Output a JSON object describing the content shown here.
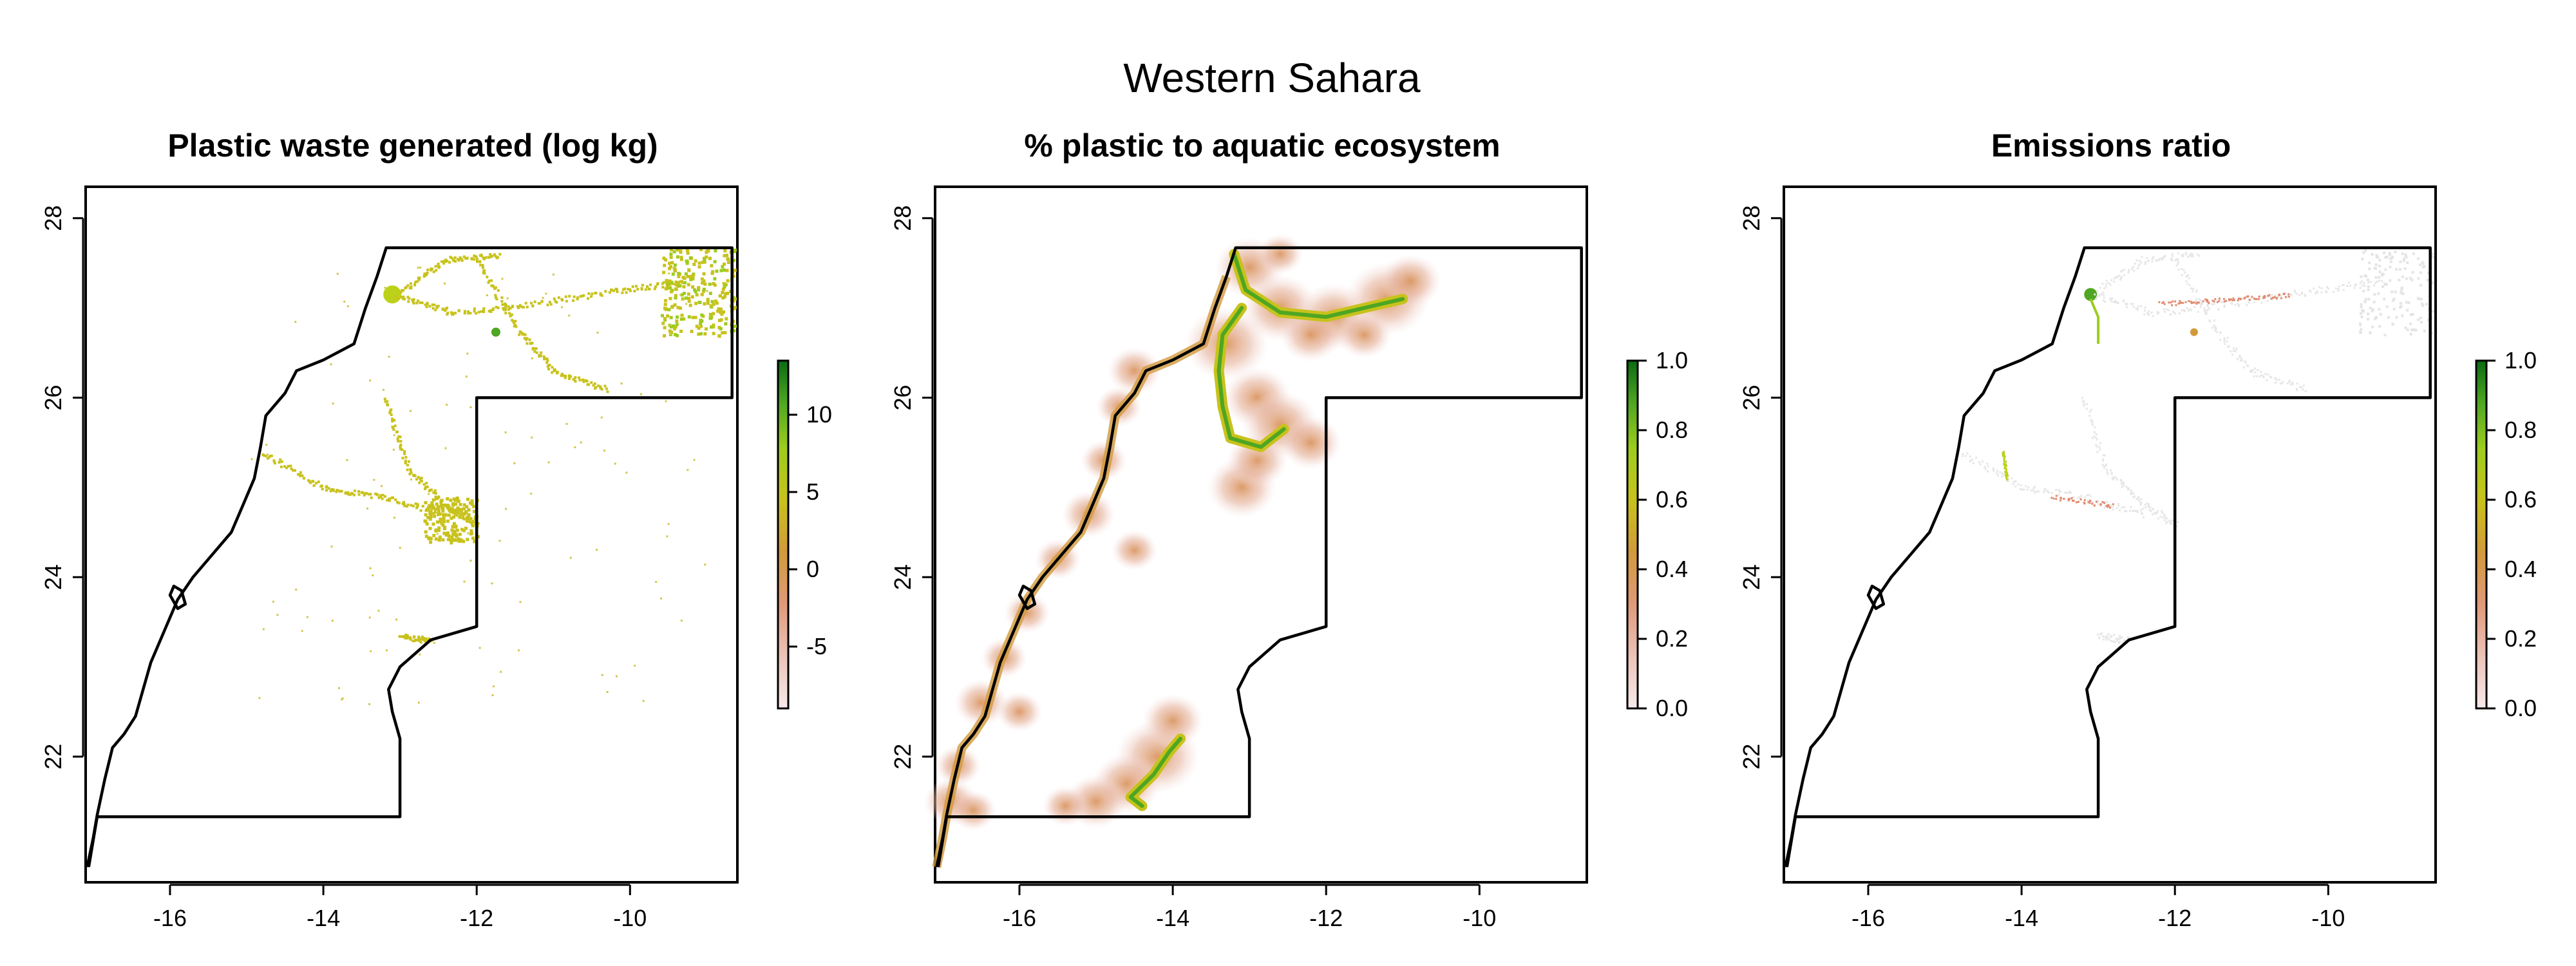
{
  "figure": {
    "title": "Western Sahara"
  },
  "panels": [
    {
      "title": "Plastic waste generated (log kg)",
      "x_ticks": [
        "-16",
        "-14",
        "-12",
        "-10"
      ],
      "y_ticks": [
        "22",
        "24",
        "26",
        "28"
      ],
      "legend": {
        "ticks": [
          "-5",
          "0",
          "5",
          "10"
        ],
        "range": [
          -9,
          13.5
        ]
      }
    },
    {
      "title": "% plastic to aquatic ecosystem",
      "x_ticks": [
        "-16",
        "-14",
        "-12",
        "-10"
      ],
      "y_ticks": [
        "22",
        "24",
        "26",
        "28"
      ],
      "legend": {
        "ticks": [
          "0.0",
          "0.2",
          "0.4",
          "0.6",
          "0.8",
          "1.0"
        ],
        "range": [
          0,
          1
        ]
      }
    },
    {
      "title": "Emissions ratio",
      "x_ticks": [
        "-16",
        "-14",
        "-12",
        "-10"
      ],
      "y_ticks": [
        "22",
        "24",
        "26",
        "28"
      ],
      "legend": {
        "ticks": [
          "0.0",
          "0.2",
          "0.4",
          "0.6",
          "0.8",
          "1.0"
        ],
        "range": [
          0,
          1
        ]
      }
    }
  ],
  "map": {
    "x_range": [
      -17.1,
      -8.6
    ],
    "y_range": [
      20.6,
      28.35
    ],
    "x_tick_values": [
      -16,
      -14,
      -12,
      -10
    ],
    "y_tick_values": [
      22,
      24,
      26,
      28
    ]
  },
  "colors": {
    "scale": [
      "#f2dede",
      "#e7b09c",
      "#d68a4e",
      "#c9a41c",
      "#bcd21a",
      "#7ec01e",
      "#2e8b22",
      "#0a6b12"
    ],
    "border": "#000000"
  }
}
